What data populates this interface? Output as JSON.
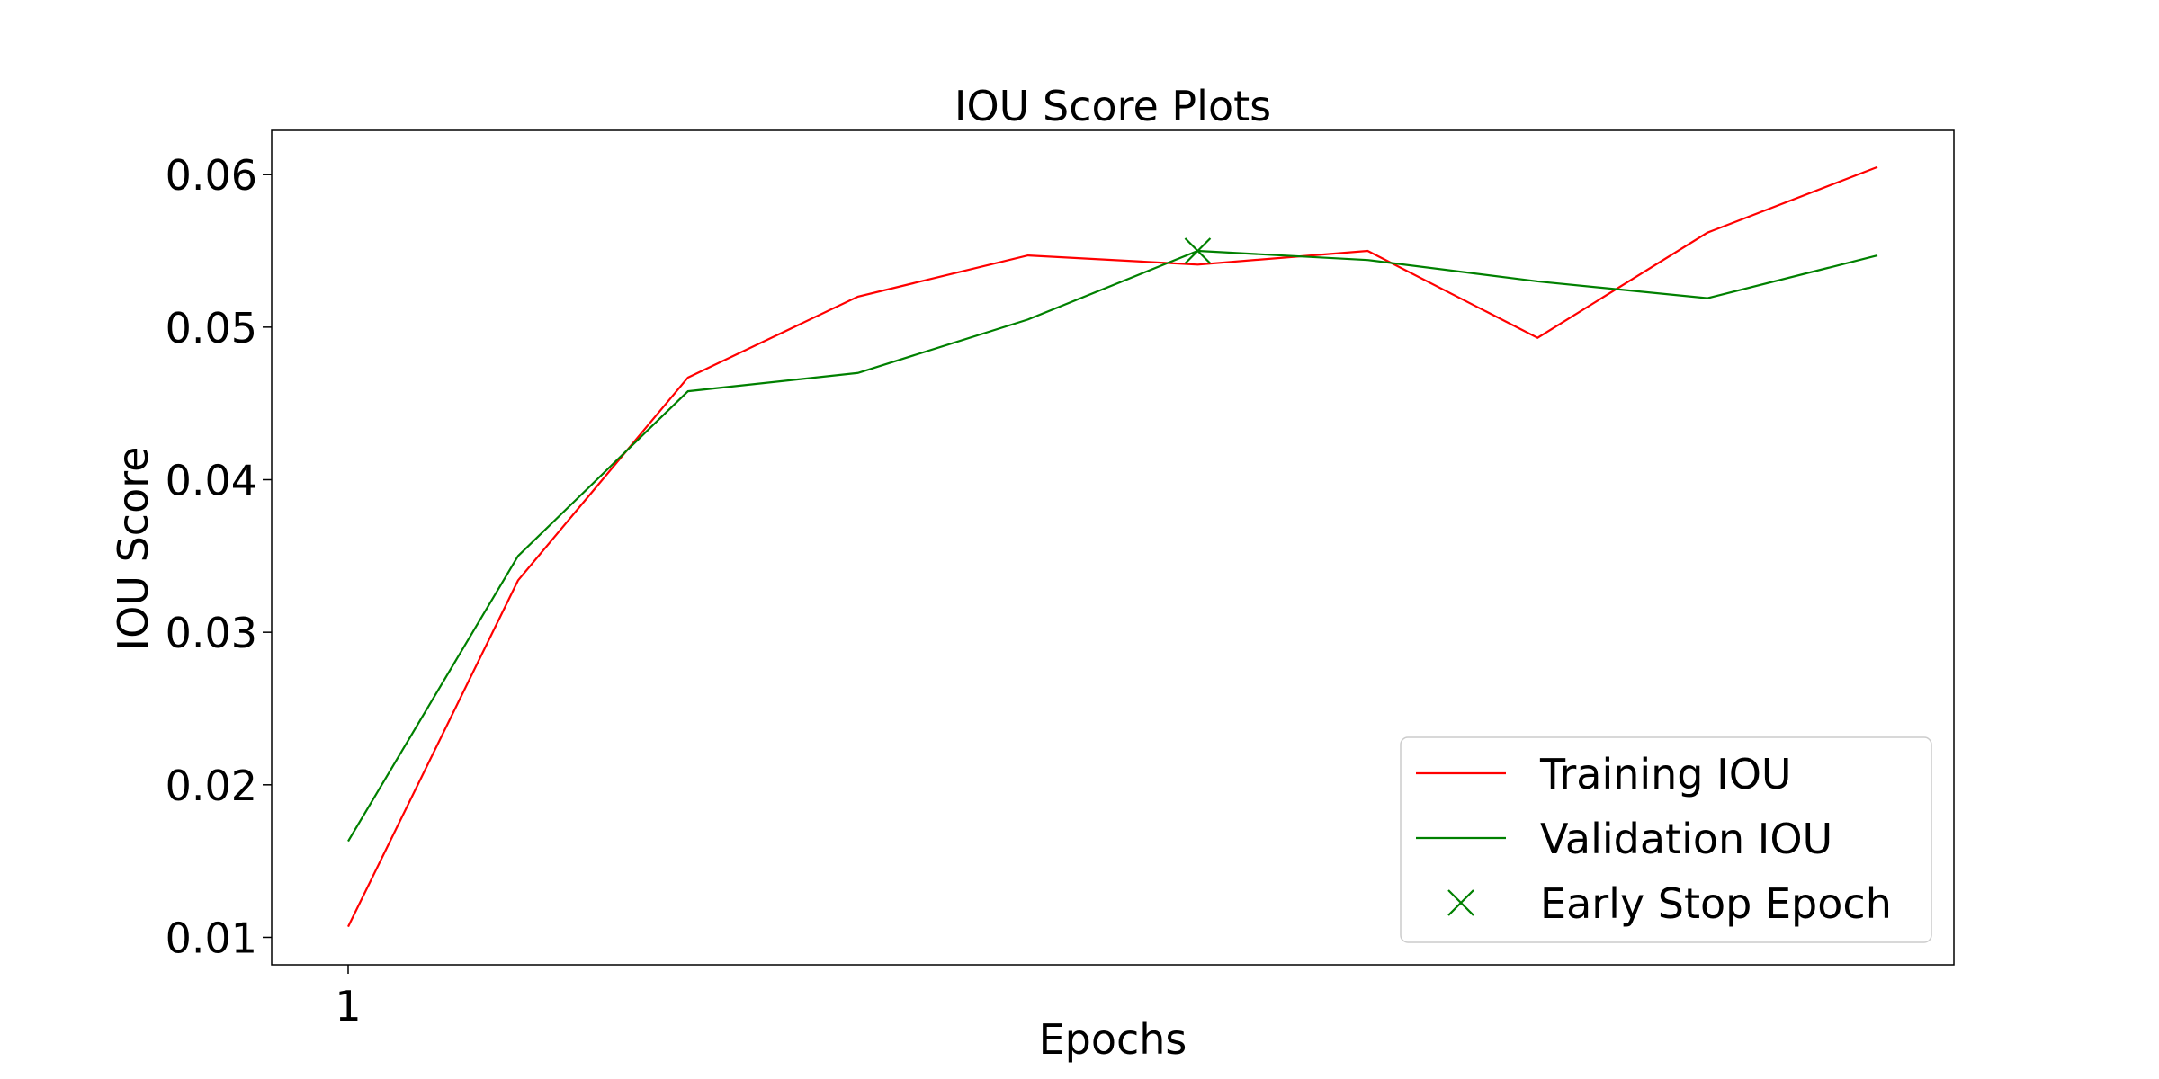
{
  "chart_data": {
    "type": "line",
    "title": "IOU Score Plots",
    "xlabel": "Epochs",
    "ylabel": "IOU Score",
    "x": [
      1,
      2,
      3,
      4,
      5,
      6,
      7,
      8,
      9,
      10
    ],
    "x_tick_labels": [
      {
        "x": 1,
        "label": "1"
      }
    ],
    "y_ticks": [
      {
        "y": 0.01,
        "label": "0.01"
      },
      {
        "y": 0.02,
        "label": "0.02"
      },
      {
        "y": 0.03,
        "label": "0.03"
      },
      {
        "y": 0.04,
        "label": "0.04"
      },
      {
        "y": 0.05,
        "label": "0.05"
      },
      {
        "y": 0.06,
        "label": "0.06"
      }
    ],
    "xlim": [
      0.55,
      10.45
    ],
    "ylim": [
      0.0082,
      0.0629
    ],
    "grid": false,
    "legend_position": "lower-right",
    "series": [
      {
        "name": "Training IOU",
        "color": "#ff0000",
        "values": [
          0.0107,
          0.0334,
          0.0467,
          0.052,
          0.0547,
          0.0541,
          0.055,
          0.0493,
          0.0562,
          0.0605
        ]
      },
      {
        "name": "Validation IOU",
        "color": "#008000",
        "values": [
          0.0163,
          0.035,
          0.0458,
          0.047,
          0.0505,
          0.055,
          0.0544,
          0.053,
          0.0519,
          0.0547
        ]
      }
    ],
    "markers": [
      {
        "name": "Early Stop Epoch",
        "symbol": "x",
        "color": "#008000",
        "x": 6,
        "y": 0.055
      }
    ]
  }
}
